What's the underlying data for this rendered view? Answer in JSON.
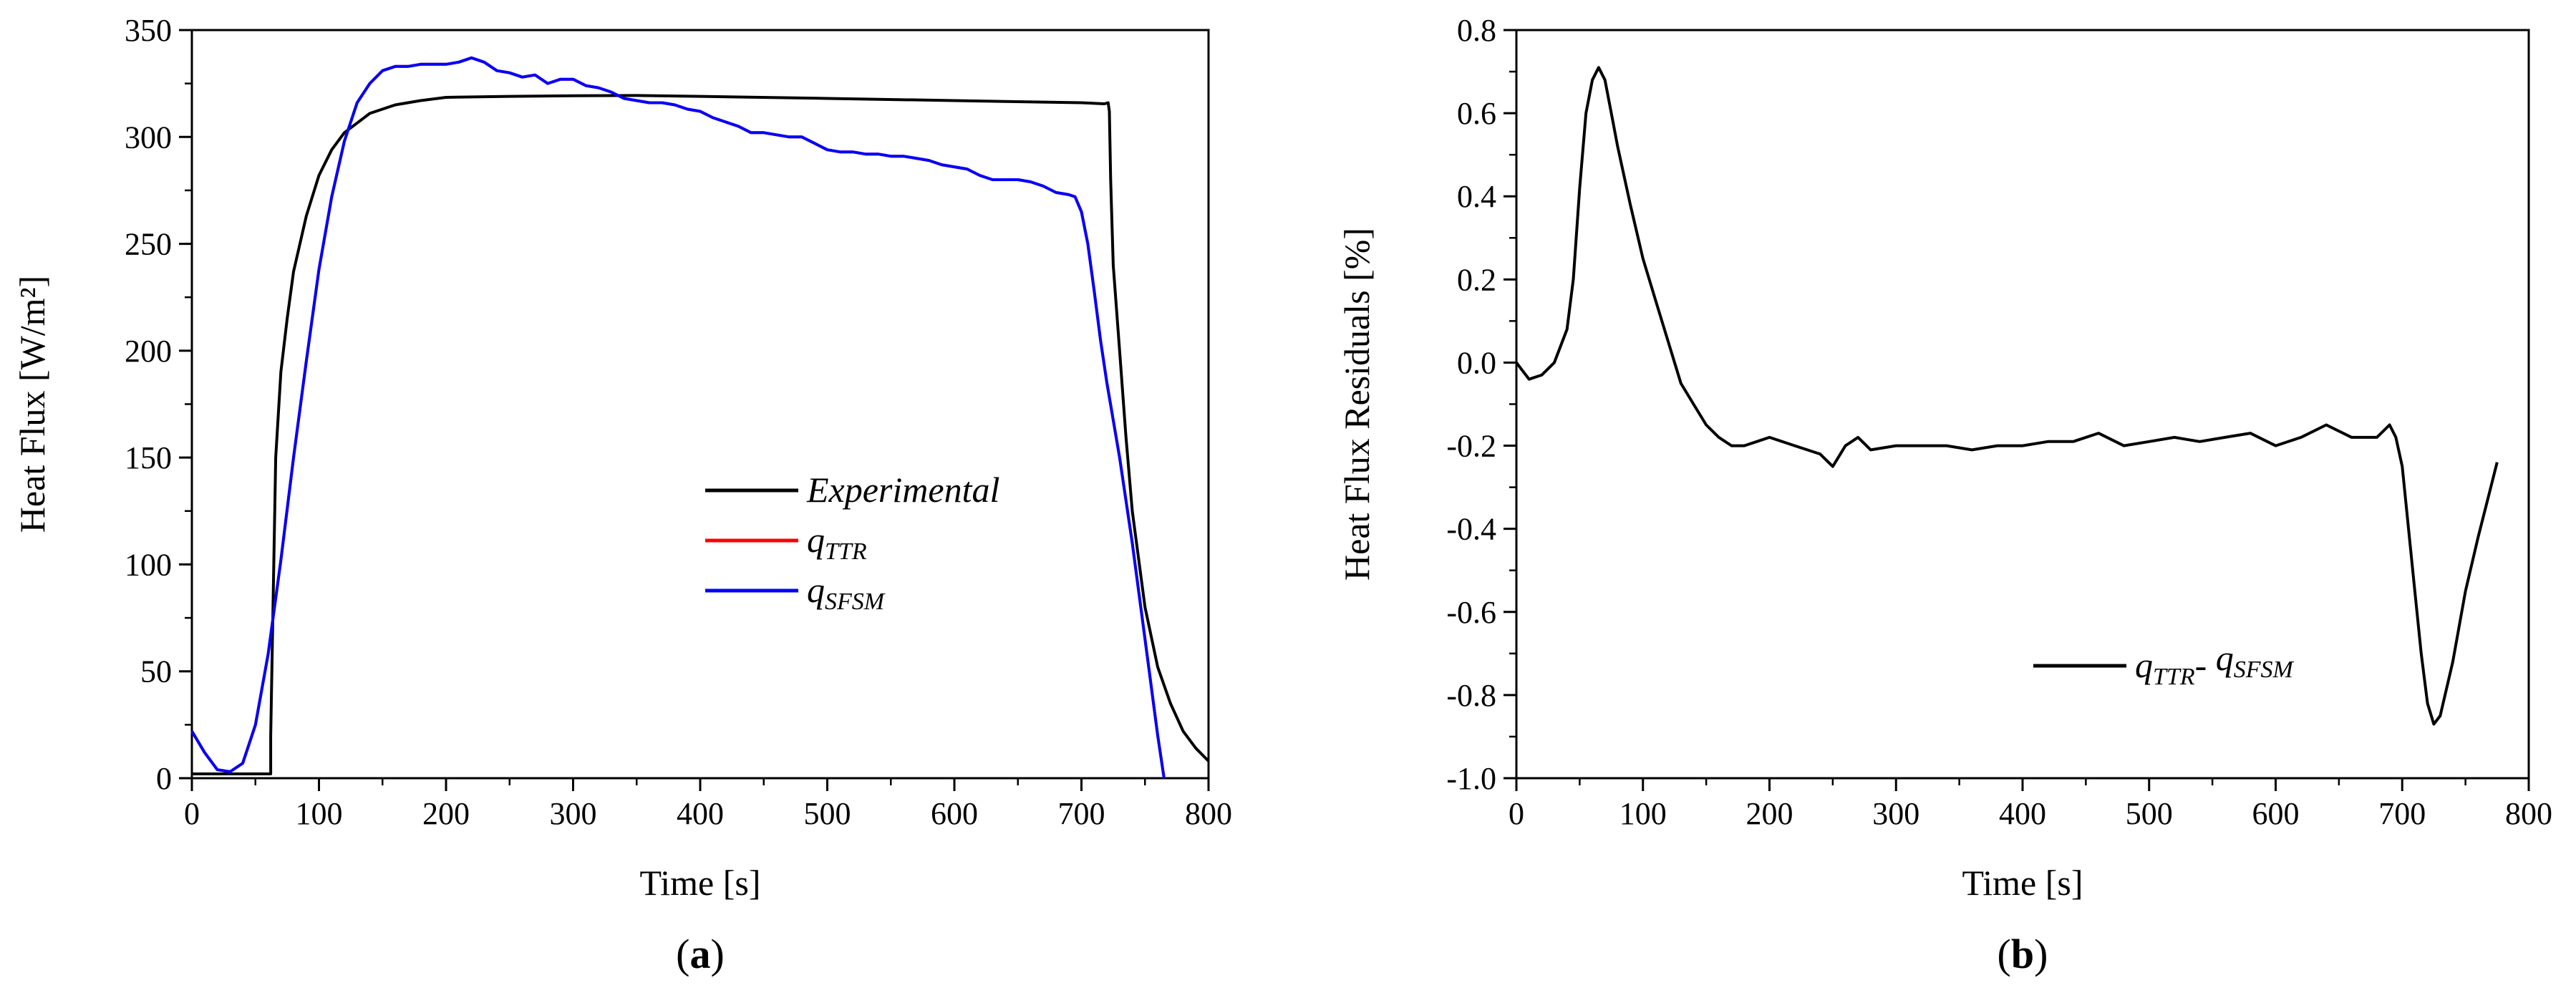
{
  "chart_data": [
    {
      "id": "a",
      "type": "line",
      "panel_label": "a",
      "xlabel": "Time [s]",
      "ylabel": "Heat Flux [W/m²]",
      "xlim": [
        0,
        800
      ],
      "ylim": [
        0,
        350
      ],
      "xticks": [
        0,
        100,
        200,
        300,
        400,
        500,
        600,
        700,
        800
      ],
      "yticks": [
        0,
        50,
        100,
        150,
        200,
        250,
        300,
        350
      ],
      "legend_position": "center-right",
      "series": [
        {
          "name": "Experimental",
          "label_main": "Experimental",
          "label_sub": "",
          "color": "#000000",
          "x": [
            0,
            62,
            62,
            66,
            70,
            75,
            80,
            90,
            100,
            110,
            120,
            140,
            160,
            180,
            200,
            250,
            300,
            350,
            400,
            500,
            600,
            700,
            718,
            721,
            722,
            723,
            725,
            730,
            735,
            740,
            750,
            760,
            770,
            780,
            790,
            800
          ],
          "y": [
            2,
            2,
            20,
            150,
            190,
            215,
            237,
            263,
            282,
            294,
            302,
            311,
            315,
            317,
            318.5,
            319,
            319.3,
            319.4,
            319,
            318,
            317,
            316,
            315.5,
            316,
            312,
            280,
            240,
            200,
            160,
            125,
            80,
            52,
            35,
            22,
            14,
            8
          ]
        },
        {
          "name": "q_TTR",
          "label_main": "q",
          "label_sub": "TTR",
          "color": "#ff0000",
          "x": [
            0,
            10,
            20,
            30,
            40,
            50,
            60,
            70,
            80,
            90,
            100,
            110,
            120,
            130,
            140,
            150,
            160,
            170,
            180,
            190,
            200,
            210,
            220,
            230,
            240,
            250,
            260,
            270,
            280,
            290,
            300,
            310,
            320,
            330,
            340,
            350,
            360,
            370,
            380,
            390,
            400,
            410,
            420,
            430,
            440,
            450,
            460,
            470,
            480,
            490,
            500,
            510,
            520,
            530,
            540,
            550,
            560,
            570,
            580,
            590,
            600,
            610,
            620,
            630,
            640,
            650,
            660,
            670,
            680,
            690,
            695,
            700,
            705,
            710,
            715,
            720,
            730,
            740,
            750,
            760,
            765
          ],
          "y": [
            22,
            12,
            4,
            3,
            7,
            25,
            58,
            102,
            150,
            195,
            238,
            272,
            298,
            316,
            325,
            331,
            333,
            333,
            334,
            334,
            334,
            335,
            337,
            335,
            331,
            330,
            328,
            329,
            325,
            327,
            327,
            324,
            323,
            321,
            318,
            317,
            316,
            316,
            315,
            313,
            312,
            309,
            307,
            305,
            302,
            302,
            301,
            300,
            300,
            297,
            294,
            293,
            293,
            292,
            292,
            291,
            291,
            290,
            289,
            287,
            286,
            285,
            282,
            280,
            280,
            280,
            279,
            277,
            274,
            273,
            272,
            265,
            250,
            228,
            205,
            185,
            150,
            110,
            65,
            20,
            0
          ]
        },
        {
          "name": "q_SFSM",
          "label_main": "q",
          "label_sub": "SFSM",
          "color": "#0000ff",
          "x": [
            0,
            10,
            20,
            30,
            40,
            50,
            60,
            70,
            80,
            90,
            100,
            110,
            120,
            130,
            140,
            150,
            160,
            170,
            180,
            190,
            200,
            210,
            220,
            230,
            240,
            250,
            260,
            270,
            280,
            290,
            300,
            310,
            320,
            330,
            340,
            350,
            360,
            370,
            380,
            390,
            400,
            410,
            420,
            430,
            440,
            450,
            460,
            470,
            480,
            490,
            500,
            510,
            520,
            530,
            540,
            550,
            560,
            570,
            580,
            590,
            600,
            610,
            620,
            630,
            640,
            650,
            660,
            670,
            680,
            690,
            695,
            700,
            705,
            710,
            715,
            720,
            730,
            740,
            750,
            760,
            765
          ],
          "y": [
            22,
            12,
            4,
            3,
            7,
            25,
            58,
            102,
            150,
            195,
            238,
            272,
            298,
            316,
            325,
            331,
            333,
            333,
            334,
            334,
            334,
            335,
            337,
            335,
            331,
            330,
            328,
            329,
            325,
            327,
            327,
            324,
            323,
            321,
            318,
            317,
            316,
            316,
            315,
            313,
            312,
            309,
            307,
            305,
            302,
            302,
            301,
            300,
            300,
            297,
            294,
            293,
            293,
            292,
            292,
            291,
            291,
            290,
            289,
            287,
            286,
            285,
            282,
            280,
            280,
            280,
            279,
            277,
            274,
            273,
            272,
            265,
            250,
            228,
            205,
            185,
            150,
            110,
            65,
            20,
            0
          ]
        }
      ]
    },
    {
      "id": "b",
      "type": "line",
      "panel_label": "b",
      "xlabel": "Time [s]",
      "ylabel": "Heat Flux Residuals [%]",
      "xlim": [
        0,
        800
      ],
      "ylim": [
        -1.0,
        0.8
      ],
      "xticks": [
        0,
        100,
        200,
        300,
        400,
        500,
        600,
        700,
        800
      ],
      "yticks": [
        -1.0,
        -0.8,
        -0.6,
        -0.4,
        -0.2,
        0.0,
        0.2,
        0.4,
        0.6,
        0.8
      ],
      "legend_position": "lower-right",
      "series": [
        {
          "name": "q_TTR - q_SFSM",
          "label_main1": "q",
          "label_sub1": "TTR",
          "label_sep": "- ",
          "label_main2": "q",
          "label_sub2": "SFSM",
          "color": "#000000",
          "x": [
            0,
            5,
            10,
            20,
            30,
            40,
            45,
            50,
            55,
            60,
            65,
            70,
            75,
            80,
            90,
            100,
            110,
            120,
            130,
            140,
            150,
            160,
            170,
            180,
            190,
            200,
            220,
            240,
            250,
            260,
            270,
            280,
            300,
            320,
            340,
            360,
            380,
            400,
            420,
            440,
            460,
            480,
            500,
            520,
            540,
            560,
            580,
            600,
            620,
            640,
            660,
            680,
            690,
            695,
            700,
            705,
            710,
            715,
            720,
            725,
            730,
            740,
            750,
            760,
            770,
            775
          ],
          "y": [
            0.0,
            -0.02,
            -0.04,
            -0.03,
            0.0,
            0.08,
            0.2,
            0.42,
            0.6,
            0.68,
            0.71,
            0.68,
            0.6,
            0.52,
            0.38,
            0.25,
            0.15,
            0.05,
            -0.05,
            -0.1,
            -0.15,
            -0.18,
            -0.2,
            -0.2,
            -0.19,
            -0.18,
            -0.2,
            -0.22,
            -0.25,
            -0.2,
            -0.18,
            -0.21,
            -0.2,
            -0.2,
            -0.2,
            -0.21,
            -0.2,
            -0.2,
            -0.19,
            -0.19,
            -0.17,
            -0.2,
            -0.19,
            -0.18,
            -0.19,
            -0.18,
            -0.17,
            -0.2,
            -0.18,
            -0.15,
            -0.18,
            -0.18,
            -0.15,
            -0.18,
            -0.25,
            -0.4,
            -0.55,
            -0.7,
            -0.82,
            -0.87,
            -0.85,
            -0.72,
            -0.55,
            -0.42,
            -0.3,
            -0.24
          ]
        }
      ]
    }
  ]
}
